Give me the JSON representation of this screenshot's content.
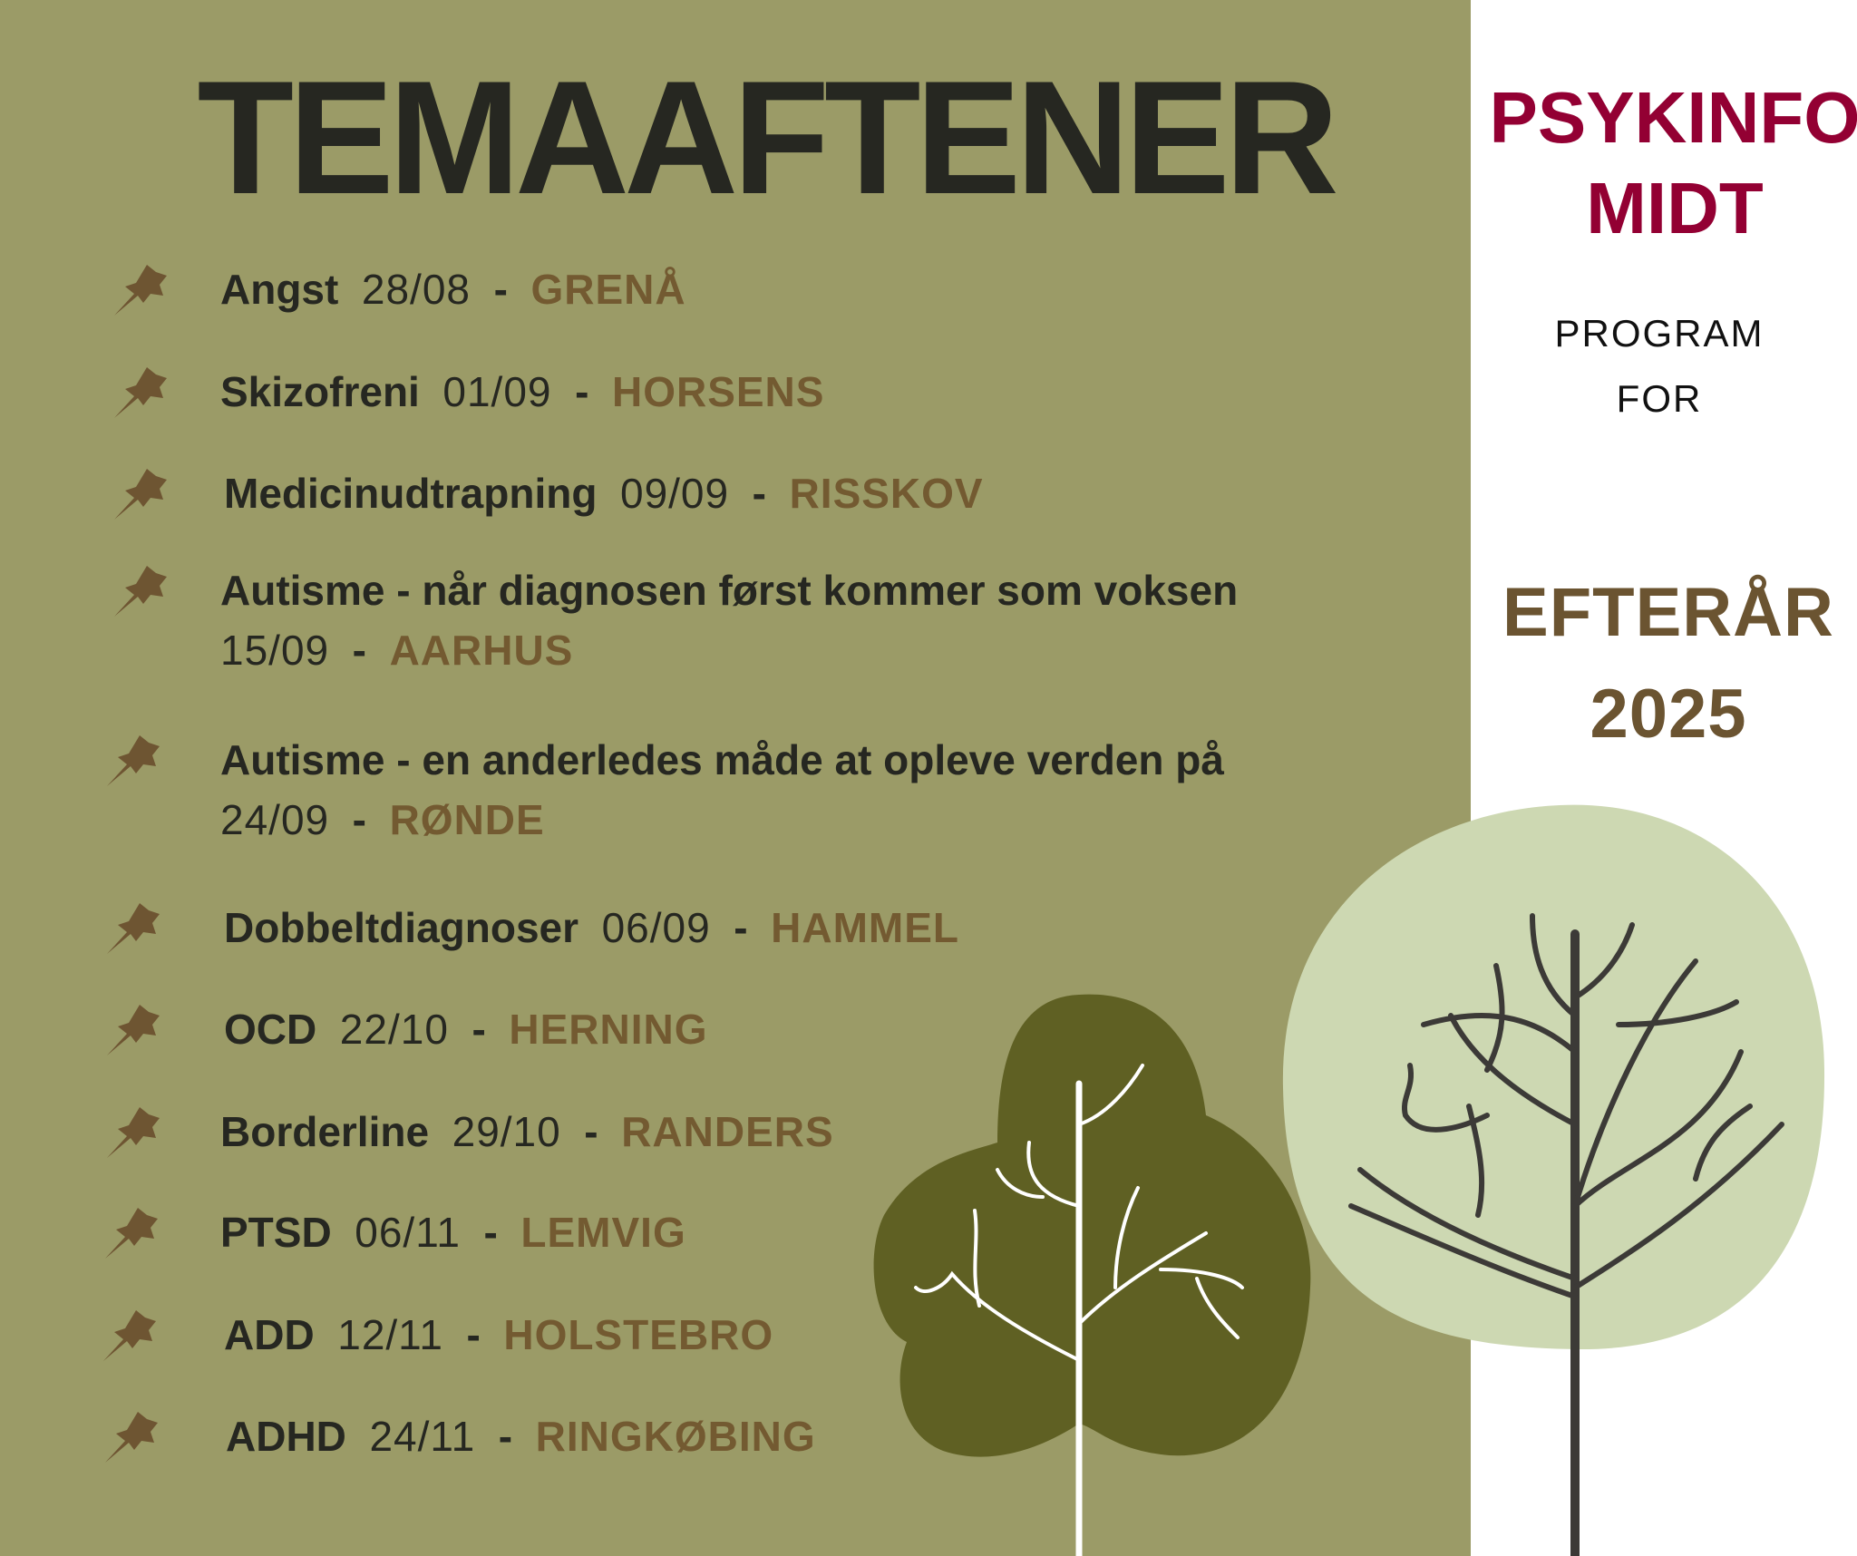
{
  "title": "TEMAAFTENER",
  "colors": {
    "background": "#9b9b67",
    "text": "#262721",
    "place": "#735a31",
    "brand": "#930033",
    "pin": "#6e5532",
    "tree_dark": "#5f6023",
    "tree_light": "#cdd8b2"
  },
  "items": [
    {
      "icon": "pushpin-icon",
      "topic": "Angst",
      "date": "28/08",
      "place": "GRENÅ"
    },
    {
      "icon": "pushpin-icon",
      "topic": "Skizofreni",
      "date": "01/09",
      "place": "HORSENS"
    },
    {
      "icon": "pushpin-icon",
      "topic": "Medicinudtrapning",
      "date": "09/09",
      "place": "RISSKOV"
    },
    {
      "icon": "pushpin-icon",
      "topic": "Autisme - når diagnosen først kommer som voksen",
      "date": "15/09",
      "place": "AARHUS"
    },
    {
      "icon": "pushpin-icon",
      "topic": "Autisme - en anderledes måde at opleve verden på",
      "date": "24/09",
      "place": "RØNDE"
    },
    {
      "icon": "pushpin-icon",
      "topic": "Dobbeltdiagnoser",
      "date": "06/09",
      "place": "HAMMEL"
    },
    {
      "icon": "pushpin-icon",
      "topic": "OCD",
      "date": "22/10",
      "place": "HERNING"
    },
    {
      "icon": "pushpin-icon",
      "topic": "Borderline",
      "date": "29/10",
      "place": "RANDERS"
    },
    {
      "icon": "pushpin-icon",
      "topic": "PTSD",
      "date": "06/11",
      "place": "LEMVIG"
    },
    {
      "icon": "pushpin-icon",
      "topic": "ADD",
      "date": "12/11",
      "place": "HOLSTEBRO"
    },
    {
      "icon": "pushpin-icon",
      "topic": "ADHD",
      "date": "24/11",
      "place": "RINGKØBING"
    }
  ],
  "side": {
    "brand_line1": "PSYKINFO",
    "brand_line2": "MIDT",
    "program_line1": "PROGRAM",
    "program_line2": "FOR",
    "season_line1": "EFTERÅR",
    "season_line2": "2025"
  }
}
